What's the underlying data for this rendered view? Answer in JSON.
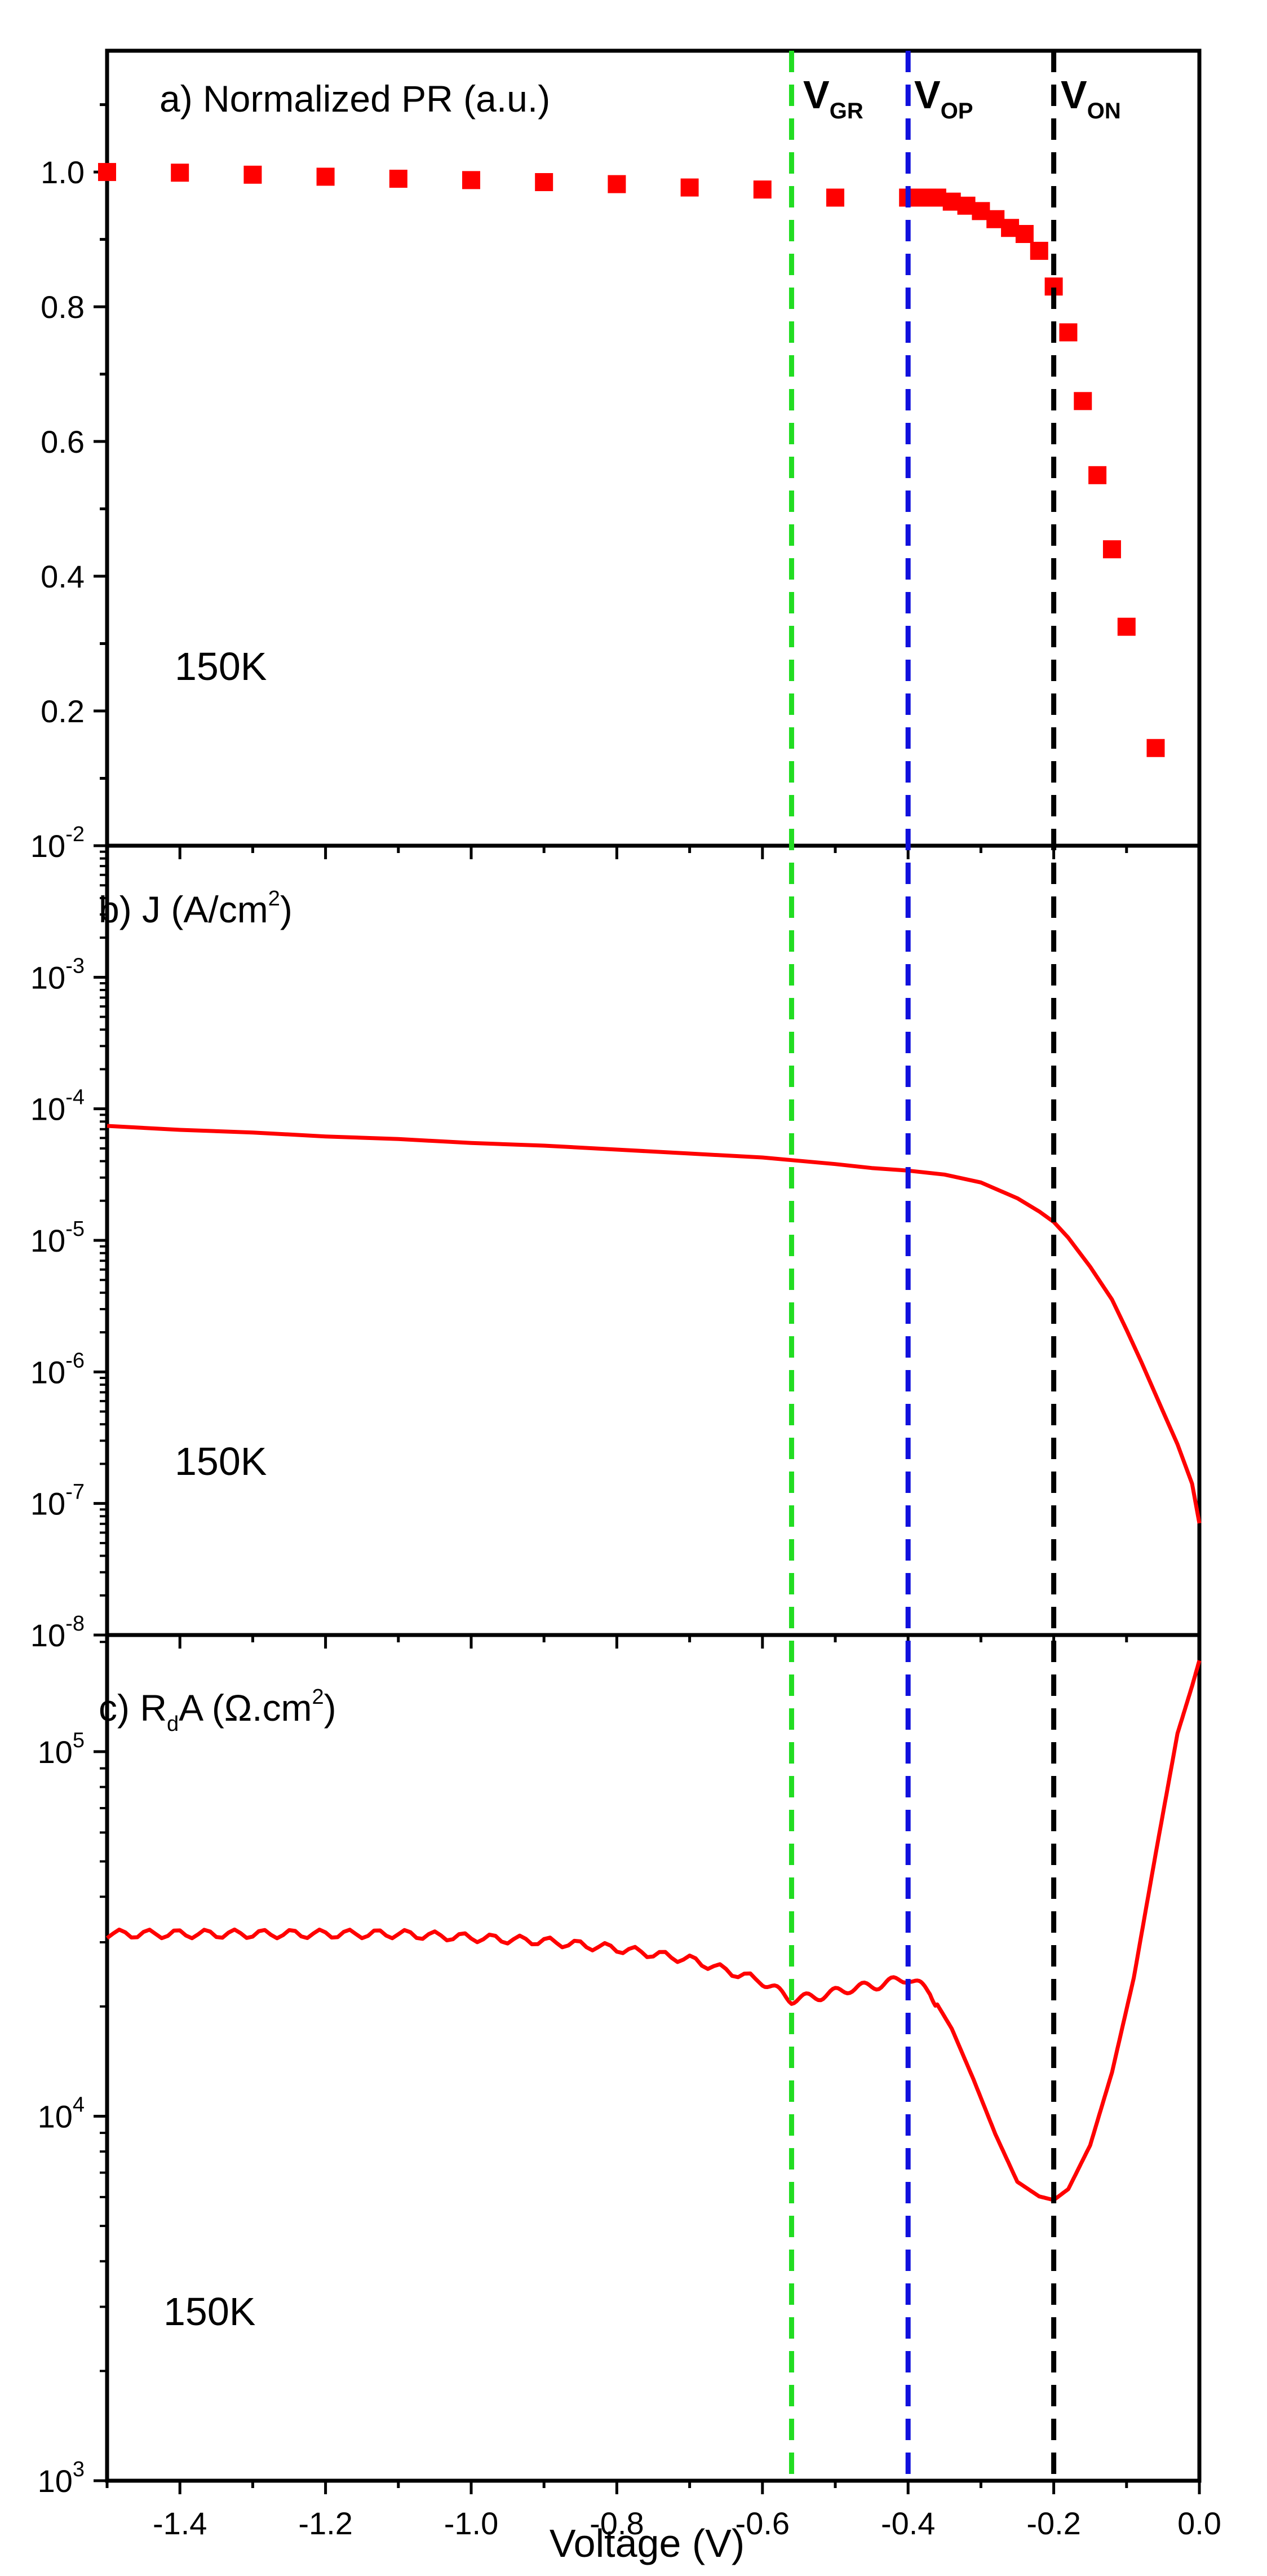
{
  "colors": {
    "data": "#ff0000",
    "v_gr": "#22dd22",
    "v_op": "#1010dd",
    "v_on": "#000000",
    "axes": "#000000"
  },
  "chart_data": [
    {
      "type": "scatter",
      "panel_label": "a) Normalized PR (a.u.)",
      "title": "a) Normalized PR (a.u.)",
      "temperature": "150K",
      "xlim": [
        -1.5,
        0.0
      ],
      "ylim": [
        0.0,
        1.18
      ],
      "yticks": [
        0.2,
        0.4,
        0.6,
        0.8,
        1.0
      ],
      "ytick_labels": [
        "0.2",
        "0.4",
        "0.6",
        "0.8",
        "1.0"
      ],
      "series": [
        {
          "name": "Normalized PR",
          "x": [
            -1.5,
            -1.4,
            -1.3,
            -1.2,
            -1.1,
            -1.0,
            -0.9,
            -0.8,
            -0.7,
            -0.6,
            -0.5,
            -0.4,
            -0.38,
            -0.36,
            -0.34,
            -0.32,
            -0.3,
            -0.28,
            -0.26,
            -0.24,
            -0.22,
            -0.2,
            -0.18,
            -0.16,
            -0.14,
            -0.12,
            -0.1,
            -0.06
          ],
          "y": [
            1.0,
            0.999,
            0.996,
            0.993,
            0.99,
            0.988,
            0.985,
            0.982,
            0.977,
            0.974,
            0.962,
            0.962,
            0.962,
            0.962,
            0.956,
            0.95,
            0.942,
            0.93,
            0.917,
            0.908,
            0.883,
            0.83,
            0.762,
            0.66,
            0.55,
            0.44,
            0.325,
            0.145
          ]
        }
      ]
    },
    {
      "type": "line",
      "panel_label": "b) J (A/cm²)",
      "title": "b) J (A/cm²)",
      "temperature": "150K",
      "xlim": [
        -1.5,
        0.0
      ],
      "yscale": "log",
      "ylim_log10": [
        -8,
        -2
      ],
      "ytick_labels": [
        "10^-8",
        "10^-7",
        "10^-6",
        "10^-5",
        "10^-4",
        "10^-3",
        "10^-2"
      ],
      "series": [
        {
          "name": "J",
          "x": [
            -1.5,
            -1.4,
            -1.3,
            -1.2,
            -1.1,
            -1.0,
            -0.9,
            -0.8,
            -0.7,
            -0.6,
            -0.56,
            -0.5,
            -0.45,
            -0.4,
            -0.35,
            -0.3,
            -0.25,
            -0.22,
            -0.2,
            -0.18,
            -0.15,
            -0.12,
            -0.1,
            -0.08,
            -0.05,
            -0.03,
            -0.01,
            0.0
          ],
          "log10_y": [
            -4.13,
            -4.16,
            -4.18,
            -4.21,
            -4.23,
            -4.26,
            -4.28,
            -4.31,
            -4.34,
            -4.37,
            -4.39,
            -4.42,
            -4.45,
            -4.47,
            -4.5,
            -4.56,
            -4.68,
            -4.78,
            -4.86,
            -4.98,
            -5.2,
            -5.45,
            -5.68,
            -5.92,
            -6.3,
            -6.55,
            -6.85,
            -7.15
          ]
        }
      ]
    },
    {
      "type": "line",
      "panel_label": "c) RdA (Ω.cm²)",
      "title": "c) RdA (Ω.cm²)",
      "temperature": "150K",
      "xlim": [
        -1.5,
        0.0
      ],
      "yscale": "log",
      "ylim_log10": [
        3,
        5.32
      ],
      "ytick_labels": [
        "10^3",
        "10^4",
        "10^5"
      ],
      "xlabel": "Voltage (V)",
      "xticks": [
        -1.4,
        -1.2,
        -1.0,
        -0.8,
        -0.6,
        -0.4,
        -0.2,
        0.0
      ],
      "xtick_labels": [
        "-1.4",
        "-1.2",
        "-1.0",
        "-0.8",
        "-0.6",
        "-0.4",
        "-0.2",
        "0.0"
      ],
      "series": [
        {
          "name": "RdA",
          "x": [
            -1.5,
            -1.4,
            -1.3,
            -1.2,
            -1.1,
            -1.0,
            -0.9,
            -0.8,
            -0.7,
            -0.6,
            -0.56,
            -0.52,
            -0.48,
            -0.44,
            -0.4,
            -0.37,
            -0.34,
            -0.31,
            -0.28,
            -0.25,
            -0.22,
            -0.2,
            -0.18,
            -0.15,
            -0.12,
            -0.09,
            -0.06,
            -0.03,
            -0.01,
            0.0
          ],
          "log10_y": [
            4.5,
            4.5,
            4.5,
            4.5,
            4.5,
            4.49,
            4.48,
            4.46,
            4.43,
            4.37,
            4.32,
            4.33,
            4.35,
            4.36,
            4.38,
            4.34,
            4.24,
            4.1,
            3.95,
            3.82,
            3.78,
            3.77,
            3.8,
            3.92,
            4.12,
            4.38,
            4.72,
            5.05,
            5.18,
            5.25
          ]
        }
      ],
      "vertical_markers": [
        {
          "name": "V_GR",
          "main": "V",
          "sub": "GR",
          "x": -0.56
        },
        {
          "name": "V_OP",
          "main": "V",
          "sub": "OP",
          "x": -0.4
        },
        {
          "name": "V_ON",
          "main": "V",
          "sub": "ON",
          "x": -0.2
        }
      ]
    }
  ]
}
